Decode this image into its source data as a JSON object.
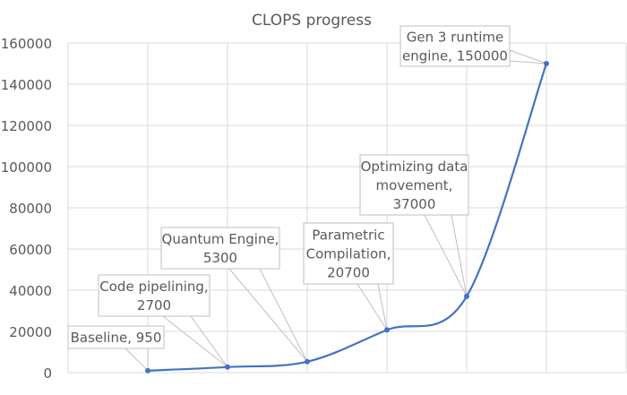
{
  "chart_data": {
    "type": "line",
    "title": "CLOPS progress",
    "xlabel": "",
    "ylabel": "",
    "ylim": [
      0,
      160000
    ],
    "yticks": [
      "0",
      "20000",
      "40000",
      "60000",
      "80000",
      "100000",
      "120000",
      "140000",
      "160000"
    ],
    "grid": true,
    "smooth": true,
    "series": [
      {
        "color": "#4472C4",
        "values": [
          950,
          2700,
          5300,
          20700,
          37000,
          150000
        ],
        "data_labels": [
          [
            "Baseline, 950"
          ],
          [
            "Code pipelining,",
            "2700"
          ],
          [
            "Quantum Engine,",
            "5300"
          ],
          [
            "Parametric",
            "Compilation,",
            "20700"
          ],
          [
            "Optimizing data",
            "movement,",
            "37000"
          ],
          [
            "Gen 3 runtime",
            "engine, 150000"
          ]
        ]
      }
    ]
  }
}
